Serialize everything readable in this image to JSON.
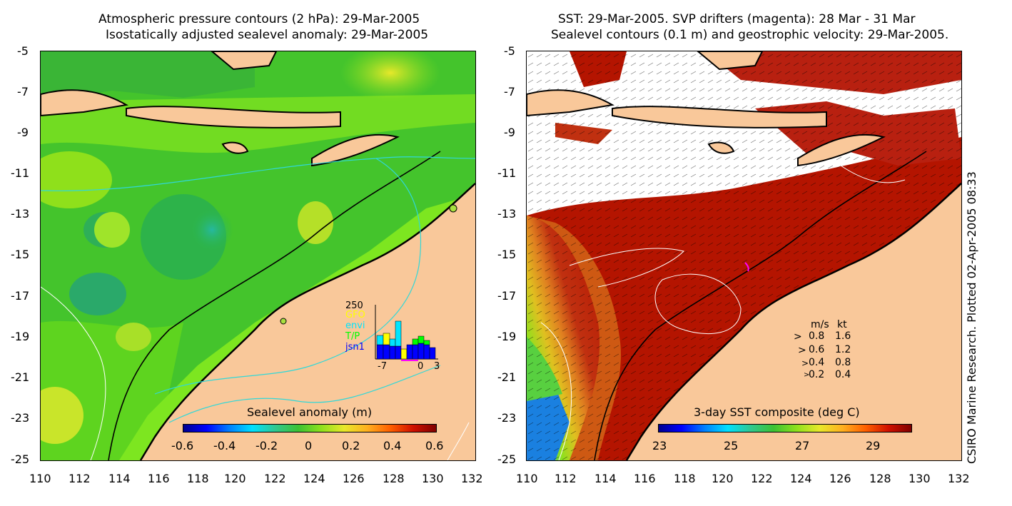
{
  "left": {
    "title_line1": "Atmospheric pressure contours (2 hPa): 29-Mar-2005",
    "title_line2": "Isostatically adjusted sealevel anomaly: 29-Mar-2005",
    "colorbar_label": "Sealevel anomaly (m)",
    "colorbar_ticks": [
      "-0.6",
      "-0.4",
      "-0.2",
      "0",
      "0.2",
      "0.4",
      "0.6"
    ],
    "inset": {
      "ymax_label": "250",
      "legend": [
        {
          "label": "GFO",
          "color": "#ffff00"
        },
        {
          "label": "envi",
          "color": "#00e5ff"
        },
        {
          "label": "T/P",
          "color": "#00ff00"
        },
        {
          "label": "jsn1",
          "color": "#0000ff"
        }
      ],
      "x_ticks": [
        "-7",
        "0",
        "3"
      ]
    }
  },
  "right": {
    "title_line1": "SST: 29-Mar-2005. SVP drifters (magenta): 28 Mar - 31 Mar",
    "title_line2": "Sealevel contours (0.1 m) and geostrophic velocity: 29-Mar-2005.",
    "colorbar_label": "3-day SST composite (deg C)",
    "colorbar_ticks": [
      "23",
      "25",
      "27",
      "29"
    ],
    "velocity_legend": {
      "header_ms": "m/s",
      "header_kt": "kt",
      "rows": [
        {
          "ms": "0.8",
          "kt": "1.6"
        },
        {
          "ms": "0.6",
          "kt": "1.2"
        },
        {
          "ms": "0.4",
          "kt": "0.8"
        },
        {
          "ms": "0.2",
          "kt": "0.4"
        }
      ]
    }
  },
  "axes": {
    "y_ticks": [
      "-5",
      "-7",
      "-9",
      "-11",
      "-13",
      "-15",
      "-17",
      "-19",
      "-21",
      "-23",
      "-25"
    ],
    "x_ticks": [
      "110",
      "112",
      "114",
      "116",
      "118",
      "120",
      "122",
      "124",
      "126",
      "128",
      "130",
      "132"
    ]
  },
  "credit": "CSIRO Marine Research. Plotted 02-Apr-2005 08:33",
  "colors": {
    "land": "#f9c89a",
    "sea_green": "#39c12a",
    "sea_light": "#66e81d",
    "sst_hot": "#b41400",
    "sst_white": "#ffffff",
    "contour_cyan": "#30d8d8"
  }
}
